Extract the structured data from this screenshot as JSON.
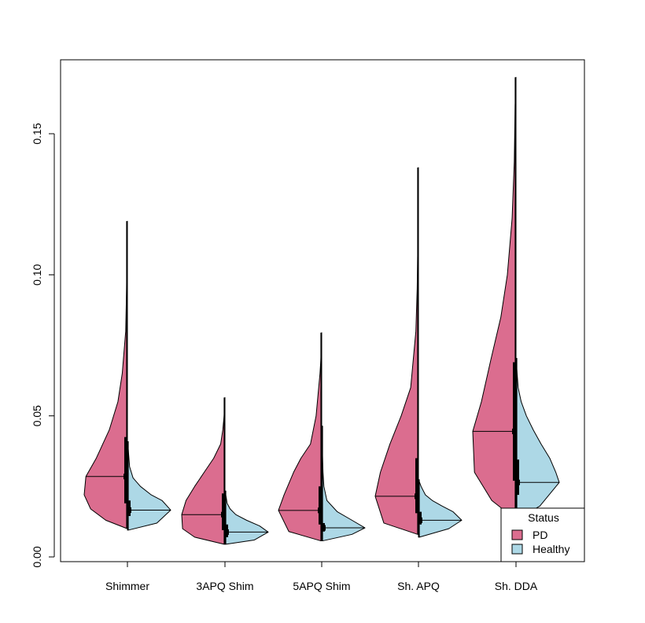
{
  "chart_data": {
    "type": "split-violin",
    "title": "",
    "xlabel": "",
    "ylabel": "",
    "ylim": [
      0.0,
      0.175
    ],
    "yticks": [
      "0.00",
      "0.05",
      "0.10",
      "0.15"
    ],
    "ytick_values": [
      0.0,
      0.05,
      0.1,
      0.15
    ],
    "categories": [
      "Shimmer",
      "3APQ Shim",
      "5APQ Shim",
      "Sh. APQ",
      "Sh. DDA"
    ],
    "legend": {
      "title": "Status",
      "position": "bottom-right",
      "entries": [
        "PD",
        "Healthy"
      ]
    },
    "colors": {
      "PD": "#DB6D8F",
      "Healthy": "#ADD8E6",
      "outline": "#000000"
    },
    "series": [
      {
        "name": "PD",
        "side": "left",
        "groups": [
          {
            "min": 0.0101,
            "max": 0.119,
            "median": 0.0285,
            "q1": 0.019,
            "q3": 0.0425,
            "profile_y": [
              0.0101,
              0.013,
              0.017,
              0.022,
              0.0285,
              0.035,
              0.045,
              0.055,
              0.065,
              0.08,
              0.095,
              0.119
            ],
            "profile_w": [
              0.02,
              0.5,
              0.85,
              1.0,
              0.96,
              0.72,
              0.42,
              0.22,
              0.12,
              0.04,
              0.02,
              0.0
            ]
          },
          {
            "min": 0.0045,
            "max": 0.0565,
            "median": 0.015,
            "q1": 0.0095,
            "q3": 0.0225,
            "profile_y": [
              0.0045,
              0.007,
              0.01,
              0.015,
              0.02,
              0.025,
              0.03,
              0.035,
              0.04,
              0.045,
              0.05,
              0.0565
            ],
            "profile_w": [
              0.02,
              0.7,
              0.98,
              1.0,
              0.9,
              0.7,
              0.48,
              0.26,
              0.1,
              0.05,
              0.02,
              0.0
            ]
          },
          {
            "min": 0.0057,
            "max": 0.0795,
            "median": 0.0165,
            "q1": 0.0115,
            "q3": 0.025,
            "profile_y": [
              0.0057,
              0.009,
              0.0165,
              0.022,
              0.03,
              0.035,
              0.04,
              0.05,
              0.06,
              0.065,
              0.07,
              0.0795
            ],
            "profile_w": [
              0.02,
              0.76,
              1.0,
              0.87,
              0.65,
              0.48,
              0.26,
              0.13,
              0.07,
              0.04,
              0.02,
              0.0
            ]
          },
          {
            "min": 0.008,
            "max": 0.138,
            "median": 0.0215,
            "q1": 0.0155,
            "q3": 0.035,
            "profile_y": [
              0.008,
              0.012,
              0.0215,
              0.03,
              0.04,
              0.05,
              0.06,
              0.08,
              0.095,
              0.11,
              0.125,
              0.138
            ],
            "profile_w": [
              0.02,
              0.8,
              1.0,
              0.88,
              0.66,
              0.4,
              0.18,
              0.06,
              0.03,
              0.015,
              0.01,
              0.0
            ]
          },
          {
            "min": 0.0135,
            "max": 0.17,
            "median": 0.0445,
            "q1": 0.027,
            "q3": 0.069,
            "profile_y": [
              0.0135,
              0.02,
              0.03,
              0.0445,
              0.055,
              0.07,
              0.085,
              0.1,
              0.12,
              0.14,
              0.16,
              0.17
            ],
            "profile_w": [
              0.02,
              0.56,
              0.96,
              1.0,
              0.8,
              0.58,
              0.35,
              0.2,
              0.09,
              0.04,
              0.02,
              0.0
            ]
          }
        ]
      },
      {
        "name": "Healthy",
        "side": "right",
        "groups": [
          {
            "min": 0.0095,
            "max": 0.041,
            "median": 0.0166,
            "q1": 0.0145,
            "q3": 0.02,
            "profile_y": [
              0.0095,
              0.012,
              0.0166,
              0.02,
              0.022,
              0.025,
              0.028,
              0.032,
              0.036,
              0.038,
              0.041
            ],
            "profile_w": [
              0.02,
              0.68,
              1.0,
              0.8,
              0.55,
              0.3,
              0.13,
              0.05,
              0.03,
              0.02,
              0.0
            ]
          },
          {
            "min": 0.0045,
            "max": 0.0235,
            "median": 0.0088,
            "q1": 0.007,
            "q3": 0.0115,
            "profile_y": [
              0.0045,
              0.006,
              0.0088,
              0.011,
              0.013,
              0.015,
              0.017,
              0.019,
              0.021,
              0.0235
            ],
            "profile_w": [
              0.02,
              0.68,
              1.0,
              0.8,
              0.5,
              0.25,
              0.12,
              0.05,
              0.03,
              0.0
            ]
          },
          {
            "min": 0.0057,
            "max": 0.0465,
            "median": 0.0103,
            "q1": 0.009,
            "q3": 0.012,
            "profile_y": [
              0.0057,
              0.008,
              0.0103,
              0.013,
              0.016,
              0.02,
              0.025,
              0.03,
              0.04,
              0.0465
            ],
            "profile_w": [
              0.02,
              0.7,
              1.0,
              0.7,
              0.36,
              0.12,
              0.05,
              0.03,
              0.01,
              0.0
            ]
          },
          {
            "min": 0.007,
            "max": 0.0275,
            "median": 0.013,
            "q1": 0.0115,
            "q3": 0.016,
            "profile_y": [
              0.007,
              0.01,
              0.013,
              0.016,
              0.018,
              0.02,
              0.022,
              0.025,
              0.0275
            ],
            "profile_w": [
              0.02,
              0.7,
              1.0,
              0.8,
              0.55,
              0.32,
              0.16,
              0.06,
              0.0
            ]
          },
          {
            "min": 0.0135,
            "max": 0.0705,
            "median": 0.0264,
            "q1": 0.022,
            "q3": 0.0345,
            "profile_y": [
              0.0135,
              0.018,
              0.0264,
              0.03,
              0.035,
              0.04,
              0.045,
              0.05,
              0.055,
              0.06,
              0.0705
            ],
            "profile_w": [
              0.02,
              0.55,
              1.0,
              0.92,
              0.78,
              0.58,
              0.4,
              0.24,
              0.12,
              0.05,
              0.0
            ]
          }
        ]
      }
    ]
  }
}
